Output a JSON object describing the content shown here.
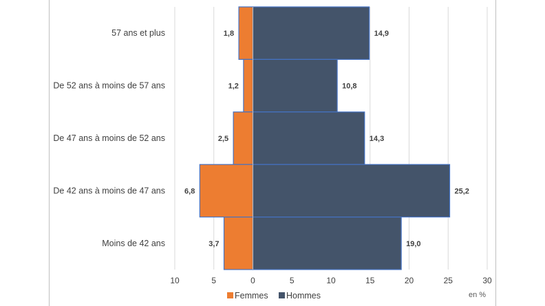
{
  "chart_data": {
    "type": "bar",
    "orientation": "horizontal",
    "stacked": "population-pyramid",
    "categories": [
      "57 ans et plus",
      "De 52 ans à moins de 57 ans",
      "De 47 ans à moins de 52 ans",
      "De 42 ans à moins de 47 ans",
      "Moins de 42 ans"
    ],
    "series": [
      {
        "name": "Femmes",
        "color": "#ED7D31",
        "values": [
          1.8,
          1.2,
          2.5,
          6.8,
          3.7
        ],
        "labels": [
          "1,8",
          "1,2",
          "2,5",
          "6,8",
          "3,7"
        ],
        "direction": "left"
      },
      {
        "name": "Hommes",
        "color": "#44546A",
        "values": [
          14.9,
          10.8,
          14.3,
          25.2,
          19.0
        ],
        "labels": [
          "14,9",
          "10,8",
          "14,3",
          "25,2",
          "19,0"
        ],
        "direction": "right"
      }
    ],
    "xlim": [
      -10,
      30
    ],
    "xticks": [
      -10,
      -5,
      0,
      5,
      10,
      15,
      20,
      25,
      30
    ],
    "xtick_labels": [
      "10",
      "5",
      "0",
      "5",
      "10",
      "15",
      "20",
      "25",
      "30"
    ],
    "unit": "en %",
    "grid": "vertical",
    "legend": "bottom-center",
    "bar_outline_color": "#4472C4"
  }
}
